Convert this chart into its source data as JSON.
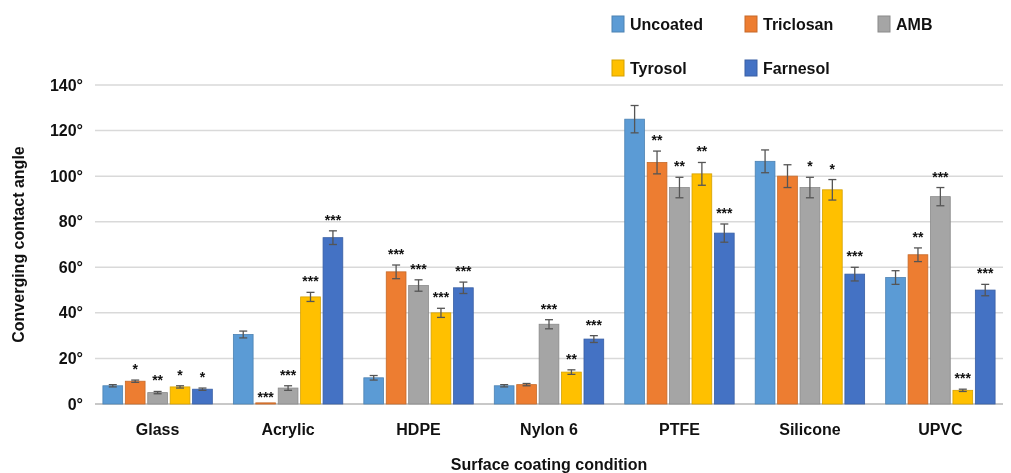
{
  "chart_data": {
    "type": "bar",
    "xlabel": "Surface coating condition",
    "ylabel": "Converging contact angle",
    "categories": [
      "Glass",
      "Acrylic",
      "HDPE",
      "Nylon 6",
      "PTFE",
      "Silicone",
      "UPVC"
    ],
    "series": [
      {
        "name": "Uncoated",
        "color": "#5b9bd5",
        "values": [
          8,
          30.5,
          11.5,
          8,
          125,
          106.5,
          55.5
        ],
        "errors": [
          0.5,
          1.5,
          1,
          0.5,
          6,
          5,
          3
        ],
        "value_labels": [
          null,
          null,
          null,
          null,
          null,
          null,
          null
        ]
      },
      {
        "name": "Triclosan",
        "color": "#ed7d31",
        "values": [
          10,
          0.5,
          58,
          8.5,
          106,
          100,
          65.5
        ],
        "errors": [
          0.5,
          null,
          3,
          0.5,
          5,
          5,
          3
        ],
        "value_labels": [
          "*",
          "***",
          "***",
          null,
          "**",
          null,
          "**"
        ]
      },
      {
        "name": "AMB",
        "color": "#a5a5a5",
        "values": [
          5,
          7,
          52,
          35,
          95,
          95,
          91
        ],
        "errors": [
          0.5,
          1,
          2.5,
          2,
          4.5,
          4.5,
          4
        ],
        "value_labels": [
          "**",
          "***",
          "***",
          "***",
          "**",
          "*",
          "***"
        ]
      },
      {
        "name": "Tyrosol",
        "color": "#ffc000",
        "values": [
          7.5,
          47,
          40,
          14,
          101,
          94,
          6
        ],
        "errors": [
          0.5,
          2,
          2,
          1,
          5,
          4.5,
          0.5
        ],
        "value_labels": [
          "*",
          "***",
          "***",
          "**",
          "**",
          "*",
          "***"
        ]
      },
      {
        "name": "Farnesol",
        "color": "#4472c4",
        "values": [
          6.5,
          73,
          51,
          28.5,
          75,
          57,
          50
        ],
        "errors": [
          0.5,
          3,
          2.5,
          1.5,
          4,
          3,
          2.5
        ],
        "value_labels": [
          "*",
          "***",
          "***",
          "***",
          "***",
          "***",
          "***"
        ]
      }
    ],
    "ylim": [
      0,
      140
    ],
    "yticks": [
      {
        "value": 0,
        "label": "0°"
      },
      {
        "value": 20,
        "label": "20°"
      },
      {
        "value": 40,
        "label": "40°"
      },
      {
        "value": 60,
        "label": "60°"
      },
      {
        "value": 80,
        "label": "80°"
      },
      {
        "value": 100,
        "label": "100°"
      },
      {
        "value": 120,
        "label": "120°"
      },
      {
        "value": 140,
        "label": "140°"
      }
    ],
    "grid": "y",
    "legend": "top right"
  }
}
